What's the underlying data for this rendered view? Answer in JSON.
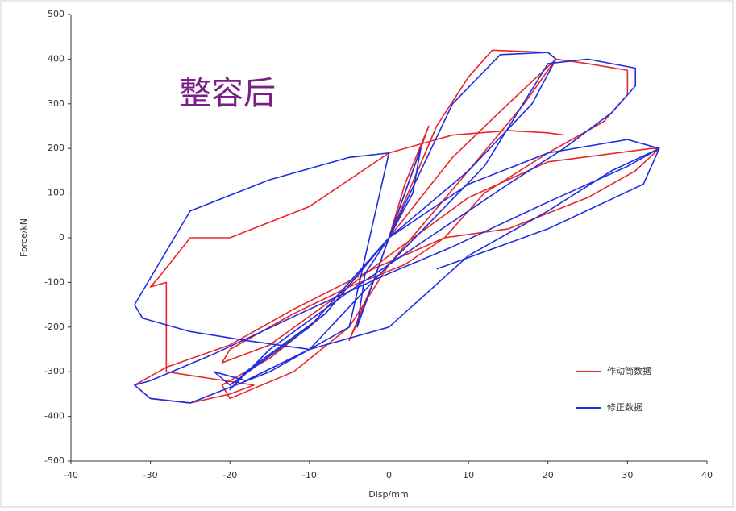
{
  "chart_data": {
    "type": "line",
    "annotation": "整容后",
    "x_label": "Disp/mm",
    "y_label": "Force/kN",
    "xlim": [
      -40,
      40
    ],
    "xticks": [
      -40,
      -30,
      -20,
      -10,
      0,
      10,
      20,
      30,
      40
    ],
    "ylim": [
      -500,
      500
    ],
    "yticks": [
      -500,
      -400,
      -300,
      -200,
      -100,
      0,
      100,
      200,
      300,
      400,
      500
    ],
    "legend": "lower right",
    "series": [
      {
        "name": "作动筒数据",
        "color": "#e8262a",
        "x": [
          0,
          3,
          5,
          2,
          0,
          -3,
          -5,
          -2,
          0,
          6,
          10,
          13,
          20,
          21,
          15,
          8,
          0,
          -8,
          -15,
          -21,
          -20,
          -12,
          -5,
          0,
          10,
          17,
          21,
          25,
          30,
          30,
          27,
          20,
          12,
          7,
          2,
          -5,
          -12,
          -20,
          -21,
          -15,
          -8,
          0,
          10,
          20,
          33,
          34,
          31,
          25,
          15,
          7,
          -2,
          -12,
          -20,
          -28,
          -32,
          -30,
          -25,
          -20,
          -17,
          -28,
          -28,
          -30,
          -29,
          -25,
          -20,
          -10,
          0,
          8,
          15,
          20,
          22
        ],
        "values": [
          0,
          150,
          250,
          120,
          0,
          -150,
          -230,
          -100,
          0,
          250,
          360,
          420,
          415,
          400,
          300,
          180,
          0,
          -170,
          -270,
          -330,
          -360,
          -300,
          -200,
          -60,
          150,
          300,
          400,
          390,
          375,
          320,
          260,
          190,
          100,
          0,
          -60,
          -110,
          -170,
          -250,
          -280,
          -240,
          -150,
          -40,
          90,
          170,
          200,
          200,
          150,
          90,
          20,
          0,
          -70,
          -160,
          -240,
          -290,
          -330,
          -360,
          -370,
          -350,
          -330,
          -300,
          -100,
          -110,
          -90,
          0,
          0,
          70,
          190,
          230,
          240,
          235,
          230
        ]
      },
      {
        "name": "修正数据",
        "color": "#1f2ee0",
        "x": [
          0,
          4,
          3,
          0,
          -4,
          -3,
          0,
          8,
          14,
          20,
          21,
          18,
          10,
          0,
          -10,
          -20,
          -22,
          -18,
          -10,
          0,
          12,
          20,
          25,
          31,
          31,
          28,
          22,
          15,
          5,
          -5,
          -15,
          -20,
          -18,
          -8,
          0,
          10,
          20,
          30,
          34,
          30,
          20,
          8,
          0,
          -10,
          -22,
          -30,
          -32,
          -30,
          -25,
          -15,
          -5,
          0,
          -5,
          -15,
          -25,
          -32,
          -31,
          -25,
          -18,
          -10,
          0,
          10,
          20,
          28,
          34,
          32,
          20,
          6
        ],
        "values": [
          0,
          200,
          100,
          0,
          -200,
          -80,
          0,
          300,
          410,
          415,
          400,
          300,
          150,
          0,
          -200,
          -330,
          -300,
          -320,
          -250,
          -60,
          160,
          390,
          400,
          380,
          340,
          280,
          200,
          120,
          0,
          -120,
          -250,
          -340,
          -300,
          -170,
          0,
          120,
          190,
          220,
          200,
          160,
          80,
          -20,
          -80,
          -160,
          -260,
          -320,
          -330,
          -360,
          -370,
          -300,
          -200,
          190,
          180,
          130,
          60,
          -150,
          -180,
          -210,
          -230,
          -250,
          -200,
          -40,
          60,
          150,
          200,
          120,
          20,
          -70
        ]
      }
    ]
  }
}
